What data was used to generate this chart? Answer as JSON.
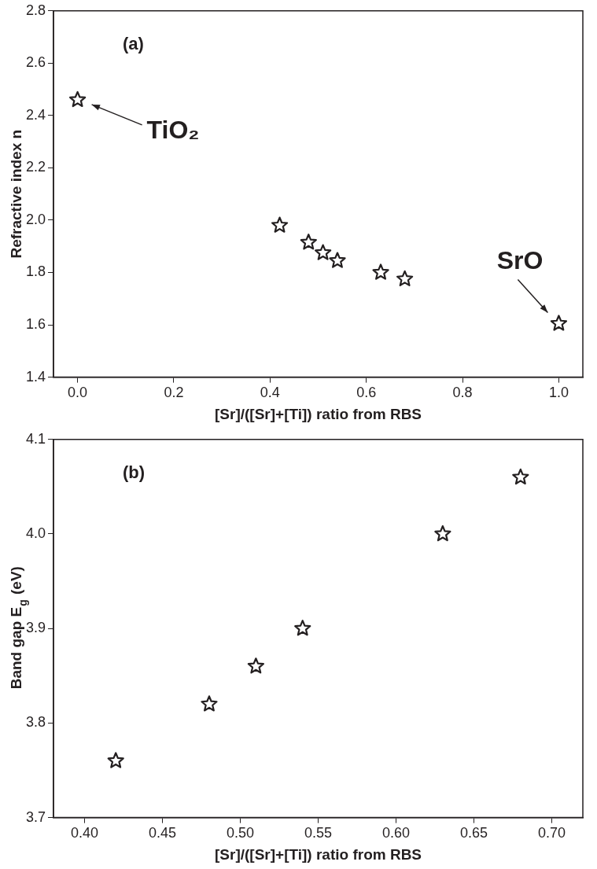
{
  "chart_data": [
    {
      "type": "scatter",
      "xlabel": "[Sr]/([Sr]+[Ti]) ratio from RBS",
      "ylabel": "Refractive index n",
      "marker": "star",
      "grid": false,
      "legend": false,
      "x": [
        0,
        0.42,
        0.48,
        0.51,
        0.54,
        0.63,
        0.68,
        1.0
      ],
      "series": [
        {
          "color": "#231f20",
          "values": [
            2.46,
            1.98,
            1.915,
            1.875,
            1.845,
            1.8,
            1.775,
            1.605
          ]
        }
      ],
      "xlim": [
        -0.05,
        1.05
      ],
      "xticks": [
        {
          "value": 0,
          "label": "0.0"
        },
        0.2,
        0.4,
        0.6,
        0.8,
        {
          "value": 1,
          "label": "1.0"
        }
      ],
      "ylim": [
        1.4,
        2.8
      ],
      "yticks": [
        1.4,
        1.6,
        1.8,
        {
          "value": 2,
          "label": "2.0"
        },
        2.2,
        2.4,
        2.6,
        2.8
      ],
      "annotations": [
        "(a)",
        {
          "text": "TiO₂",
          "x": 0,
          "y": 2.46
        },
        {
          "text": "SrO",
          "x": 1.0,
          "y": 1.605
        }
      ]
    },
    {
      "type": "scatter",
      "xlabel": "[Sr]/([Sr]+[Ti]) ratio from RBS",
      "ylabel": "Band gap E$_{g}$ (eV)",
      "marker": "star",
      "grid": false,
      "legend": false,
      "x": [
        0.42,
        0.48,
        0.51,
        0.54,
        0.63,
        0.68
      ],
      "series": [
        {
          "color": "#231f20",
          "values": [
            3.76,
            3.82,
            3.86,
            3.9,
            4.0,
            4.06
          ]
        }
      ],
      "xlim": [
        0.38,
        0.72
      ],
      "xticks": [
        {
          "value": 0.4,
          "label": "0.40"
        },
        0.45,
        {
          "value": 0.5,
          "label": "0.50"
        },
        0.55,
        {
          "value": 0.6,
          "label": "0.60"
        },
        0.65,
        {
          "value": 0.7,
          "label": "0.70"
        }
      ],
      "ylim": [
        3.7,
        4.1
      ],
      "yticks": [
        3.7,
        3.8,
        3.9,
        {
          "value": 4,
          "label": "4.0"
        },
        4.1
      ],
      "annotations": [
        "(b)"
      ]
    }
  ]
}
